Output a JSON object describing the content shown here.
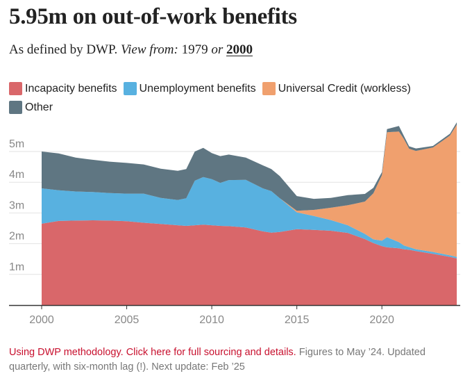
{
  "header": {
    "title": "5.95m on out-of-work benefits",
    "subtitle_prefix": "As defined by DWP.",
    "view_label": "View from:",
    "view_options": [
      "1979",
      "2000"
    ],
    "view_or": "or",
    "view_selected": "2000"
  },
  "legend": [
    {
      "label": "Incapacity benefits",
      "color": "#d9676a"
    },
    {
      "label": "Unemployment benefits",
      "color": "#58b1e0"
    },
    {
      "label": "Universal Credit (workless)",
      "color": "#f0a06e"
    },
    {
      "label": "Other",
      "color": "#5f7682"
    }
  ],
  "footer": {
    "link_text": "Using DWP methodology. Click here for full sourcing and details.",
    "note": " Figures to May ’24. Updated quarterly, with six-month lag (!). Next update: Feb ’25"
  },
  "chart_data": {
    "type": "area",
    "stacked": true,
    "xlim": [
      2000,
      2024.4
    ],
    "ylim": [
      0,
      6
    ],
    "x_ticks": [
      2000,
      2005,
      2010,
      2015,
      2020
    ],
    "x_tick_labels": [
      "2000",
      "2005",
      "2010",
      "2015",
      "2020"
    ],
    "y_ticks": [
      1,
      2,
      3,
      4,
      5
    ],
    "y_tick_labels": [
      "1m",
      "2m",
      "3m",
      "4m",
      "5m"
    ],
    "grid": "horizontal",
    "legend_position": "top",
    "x": [
      2000,
      2001,
      2002,
      2003,
      2004,
      2005,
      2006,
      2007,
      2008,
      2008.5,
      2009,
      2009.5,
      2010,
      2010.5,
      2011,
      2012,
      2013,
      2013.5,
      2014,
      2015,
      2016,
      2017,
      2018,
      2019,
      2019.5,
      2020,
      2020.3,
      2021,
      2021.3,
      2021.6,
      2022,
      2023,
      2024,
      2024.4
    ],
    "series": [
      {
        "name": "Incapacity benefits",
        "color": "#d9676a",
        "values": [
          2.65,
          2.74,
          2.75,
          2.76,
          2.75,
          2.73,
          2.68,
          2.64,
          2.6,
          2.58,
          2.6,
          2.62,
          2.6,
          2.58,
          2.57,
          2.53,
          2.4,
          2.36,
          2.38,
          2.47,
          2.45,
          2.42,
          2.35,
          2.15,
          2.02,
          1.92,
          1.88,
          1.85,
          1.82,
          1.8,
          1.76,
          1.67,
          1.57,
          1.52
        ]
      },
      {
        "name": "Unemployment benefits",
        "color": "#58b1e0",
        "values": [
          1.15,
          1.0,
          0.95,
          0.92,
          0.9,
          0.9,
          0.95,
          0.85,
          0.82,
          0.9,
          1.45,
          1.55,
          1.5,
          1.4,
          1.5,
          1.55,
          1.4,
          1.35,
          1.1,
          0.55,
          0.45,
          0.35,
          0.25,
          0.17,
          0.12,
          0.18,
          0.33,
          0.2,
          0.12,
          0.09,
          0.06,
          0.06,
          0.05,
          0.05
        ]
      },
      {
        "name": "Universal Credit (workless)",
        "color": "#f0a06e",
        "values": [
          0,
          0,
          0,
          0,
          0,
          0,
          0,
          0,
          0,
          0,
          0,
          0,
          0,
          0,
          0,
          0,
          0,
          0,
          0,
          0.05,
          0.2,
          0.4,
          0.65,
          1.05,
          1.5,
          2.13,
          3.42,
          3.6,
          3.46,
          3.2,
          3.2,
          3.4,
          3.9,
          4.3
        ]
      },
      {
        "name": "Other",
        "color": "#5f7682",
        "values": [
          1.2,
          1.2,
          1.1,
          1.05,
          1.02,
          1.0,
          0.95,
          0.95,
          0.95,
          0.95,
          0.95,
          0.95,
          0.85,
          0.87,
          0.83,
          0.72,
          0.75,
          0.72,
          0.72,
          0.48,
          0.36,
          0.32,
          0.33,
          0.25,
          0.18,
          0.1,
          0.1,
          0.18,
          0.1,
          0.08,
          0.08,
          0.05,
          0.06,
          0.08
        ]
      }
    ]
  }
}
